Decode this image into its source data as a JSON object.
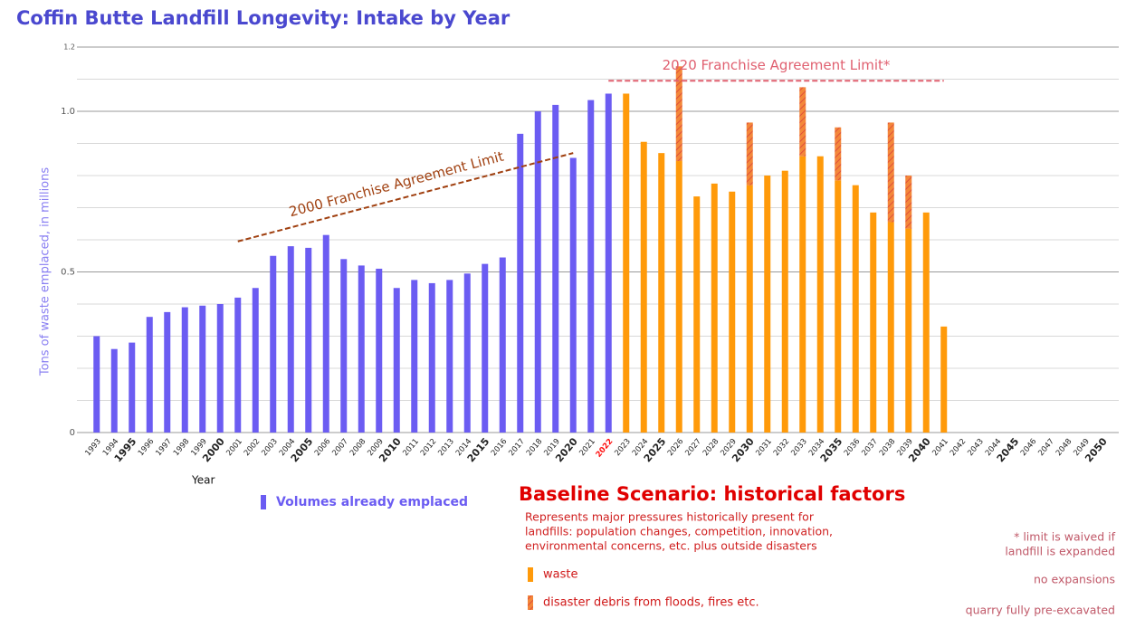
{
  "chart_data": {
    "type": "stacked_bar",
    "title": "Coffin Butte Landfill Longevity: Intake by Year",
    "y_label": "Tons of waste emplaced, in millions",
    "x_label": "Year",
    "categories": [
      "1993",
      "1994",
      "1995",
      "1996",
      "1997",
      "1998",
      "1999",
      "2000",
      "2001",
      "2002",
      "2003",
      "2004",
      "2005",
      "2006",
      "2007",
      "2008",
      "2009",
      "2010",
      "2011",
      "2012",
      "2013",
      "2014",
      "2015",
      "2016",
      "2017",
      "2018",
      "2019",
      "2020",
      "2021",
      "2022",
      "2023",
      "2024",
      "2025",
      "2026",
      "2027",
      "2028",
      "2029",
      "2030",
      "2031",
      "2032",
      "2033",
      "2034",
      "2035",
      "2036",
      "2037",
      "2038",
      "2039",
      "2040",
      "2041",
      "2042",
      "2043",
      "2044",
      "2045",
      "2046",
      "2047",
      "2048",
      "2049",
      "2050"
    ],
    "series": [
      {
        "name": "Volumes already emplaced",
        "color": "#6b5cf2",
        "pattern": "solid",
        "values": [
          0.3,
          0.26,
          0.28,
          0.36,
          0.375,
          0.39,
          0.395,
          0.4,
          0.42,
          0.45,
          0.55,
          0.58,
          0.575,
          0.615,
          0.54,
          0.52,
          0.51,
          0.45,
          0.475,
          0.465,
          0.475,
          0.495,
          0.525,
          0.545,
          0.93,
          1.0,
          1.02,
          0.855,
          1.035,
          1.055,
          null,
          null,
          null,
          null,
          null,
          null,
          null,
          null,
          null,
          null,
          null,
          null,
          null,
          null,
          null,
          null,
          null,
          null,
          null,
          null,
          null,
          null,
          null,
          null,
          null,
          null,
          null,
          null
        ]
      },
      {
        "name": "waste",
        "color": "#ff9a0a",
        "pattern": "solid",
        "values": [
          null,
          null,
          null,
          null,
          null,
          null,
          null,
          null,
          null,
          null,
          null,
          null,
          null,
          null,
          null,
          null,
          null,
          null,
          null,
          null,
          null,
          null,
          null,
          null,
          null,
          null,
          null,
          null,
          null,
          null,
          1.055,
          0.905,
          0.87,
          0.845,
          0.735,
          0.775,
          0.75,
          0.77,
          0.8,
          0.815,
          0.86,
          0.86,
          0.785,
          0.77,
          0.685,
          0.655,
          0.635,
          0.685,
          0.33,
          null,
          null,
          null,
          null,
          null,
          null,
          null,
          null,
          null
        ]
      },
      {
        "name": "disaster debris from floods, fires etc.",
        "color": "#f3873a",
        "pattern": "hatched",
        "values": [
          null,
          null,
          null,
          null,
          null,
          null,
          null,
          null,
          null,
          null,
          null,
          null,
          null,
          null,
          null,
          null,
          null,
          null,
          null,
          null,
          null,
          null,
          null,
          null,
          null,
          null,
          null,
          null,
          null,
          null,
          null,
          null,
          null,
          0.295,
          null,
          null,
          null,
          0.195,
          null,
          null,
          0.215,
          null,
          0.165,
          null,
          null,
          0.31,
          0.165,
          null,
          null,
          null,
          null,
          null,
          null,
          null,
          null,
          null,
          null,
          null
        ]
      }
    ],
    "ylim": [
      0,
      1.2
    ],
    "yticks": [
      0,
      0.5,
      {
        "value": 1,
        "label": "1.0"
      },
      1.2
    ],
    "yminor_ticks": [
      0.1,
      0.2,
      0.3,
      0.4,
      0.6,
      0.7,
      0.8,
      0.9,
      1.1
    ],
    "grid": true,
    "x_tick_highlight": {
      "index": 29,
      "color": "#ff1010"
    },
    "reference_lines": [
      {
        "label": "2000 Franchise Agreement Limit",
        "color": "#a04010",
        "from": {
          "x": "2001",
          "y": 0.595
        },
        "to": {
          "x": "2020",
          "y": 0.87
        }
      },
      {
        "label": "2020 Franchise Agreement Limit*",
        "color": "#e06070",
        "from": {
          "x": "2022",
          "y": 1.095
        },
        "to": {
          "x": "2041",
          "y": 1.095
        }
      }
    ],
    "scenario_title": "Baseline Scenario: historical factors",
    "scenario_description": [
      "Represents major pressures historically present for",
      "landfills: population changes, competition, innovation,",
      "environmental concerns, etc. plus outside disasters"
    ],
    "notes": [
      "* limit is waived if",
      "landfill is expanded",
      "no expansions",
      "quarry fully pre-excavated"
    ]
  }
}
